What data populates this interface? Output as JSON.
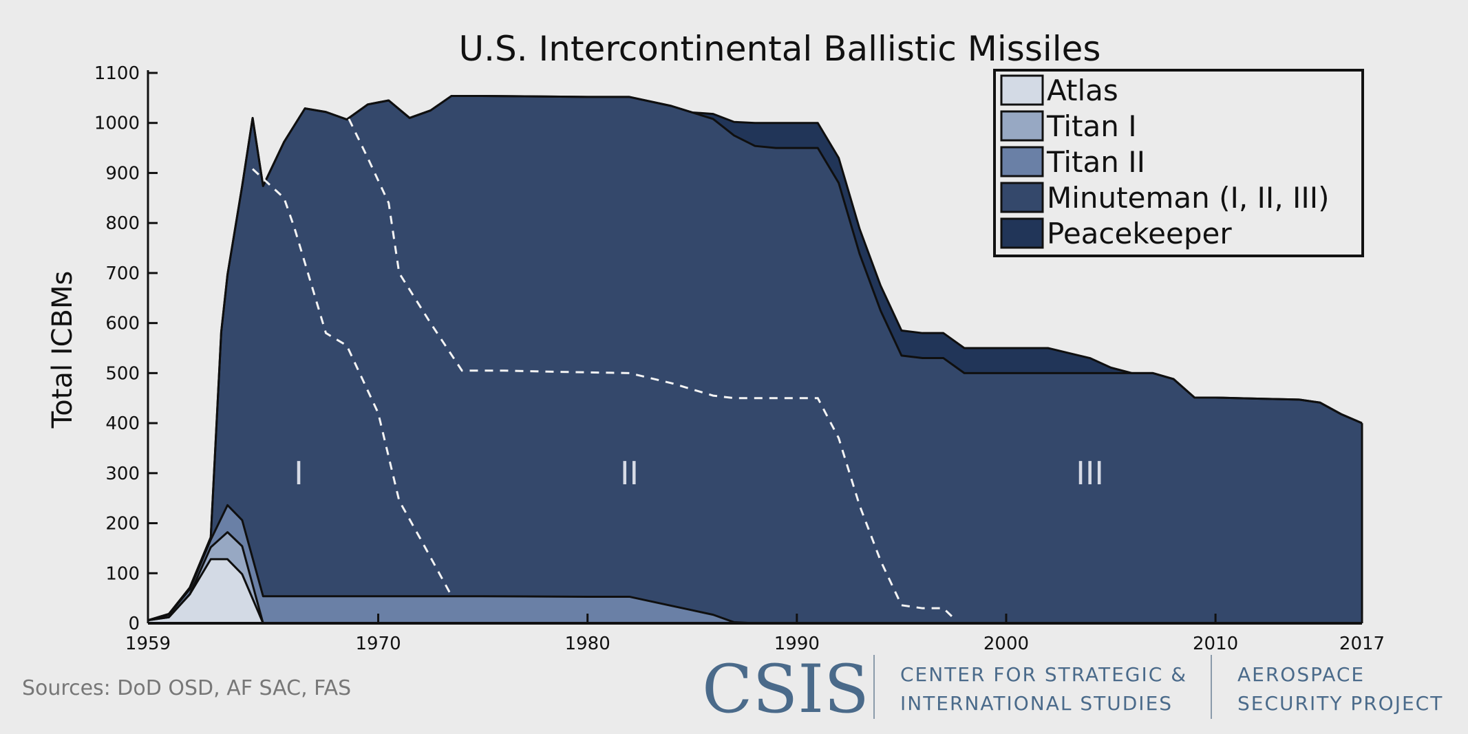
{
  "chart_data": {
    "type": "area",
    "title": "U.S. Intercontinental Ballistic Missiles",
    "ylabel": "Total ICBMs",
    "xlabel": "",
    "xlim": [
      1959,
      2017
    ],
    "ylim": [
      0,
      1100
    ],
    "xticks": [
      1959,
      1970,
      1980,
      1990,
      2000,
      2010,
      2017
    ],
    "yticks": [
      0,
      100,
      200,
      300,
      400,
      500,
      600,
      700,
      800,
      900,
      1000,
      1100
    ],
    "grid": false,
    "legend_position": "top-right",
    "stacked": true,
    "series": [
      {
        "name": "Atlas",
        "color": "#d3dae5",
        "points": [
          [
            1959,
            6
          ],
          [
            1960,
            12
          ],
          [
            1961,
            58
          ],
          [
            1962,
            128
          ],
          [
            1962.8,
            128
          ],
          [
            1963.5,
            98
          ],
          [
            1964.5,
            0
          ],
          [
            2017,
            0
          ]
        ]
      },
      {
        "name": "Titan I",
        "color": "#97a8c3",
        "points": [
          [
            1959,
            0
          ],
          [
            1960,
            0
          ],
          [
            1961,
            0
          ],
          [
            1962,
            24
          ],
          [
            1962.8,
            54
          ],
          [
            1963.5,
            56
          ],
          [
            1964.5,
            0
          ],
          [
            2017,
            0
          ]
        ]
      },
      {
        "name": "Titan II",
        "color": "#6a80a6",
        "points": [
          [
            1959,
            0
          ],
          [
            1962,
            15
          ],
          [
            1962.8,
            54
          ],
          [
            1963.5,
            52
          ],
          [
            1964.5,
            54
          ],
          [
            1966,
            54
          ],
          [
            1970,
            54
          ],
          [
            1975,
            54
          ],
          [
            1980,
            53
          ],
          [
            1982,
            53
          ],
          [
            1984,
            35
          ],
          [
            1986,
            17
          ],
          [
            1987,
            2
          ],
          [
            1988,
            0
          ],
          [
            2017,
            0
          ]
        ]
      },
      {
        "name": "Minuteman (I, II, III)",
        "color": "#34486b",
        "points": [
          [
            1959,
            0
          ],
          [
            1962,
            5
          ],
          [
            1962.5,
            372
          ],
          [
            1963.5,
            668
          ],
          [
            1964,
            880
          ],
          [
            1964.5,
            820
          ],
          [
            1965.5,
            908
          ],
          [
            1966.5,
            975
          ],
          [
            1967.5,
            968
          ],
          [
            1968.5,
            953
          ],
          [
            1969.5,
            983
          ],
          [
            1970.5,
            991
          ],
          [
            1971.5,
            956
          ],
          [
            1972.5,
            971
          ],
          [
            1973.5,
            1000
          ],
          [
            1975,
            1000
          ],
          [
            1980,
            999
          ],
          [
            1982,
            999
          ],
          [
            1984,
            999
          ],
          [
            1985,
            995
          ],
          [
            1986,
            991
          ],
          [
            1987,
            973
          ],
          [
            1988,
            954
          ],
          [
            1989,
            950
          ],
          [
            1990,
            950
          ],
          [
            1991,
            950
          ],
          [
            1992,
            880
          ],
          [
            1993,
            738
          ],
          [
            1994,
            625
          ],
          [
            1995,
            535
          ],
          [
            1996,
            530
          ],
          [
            1997,
            530
          ],
          [
            1998,
            500
          ],
          [
            2000,
            500
          ],
          [
            2005,
            500
          ],
          [
            2006,
            500
          ],
          [
            2007,
            500
          ],
          [
            2008,
            488
          ],
          [
            2009,
            451
          ],
          [
            2010,
            451
          ],
          [
            2012,
            449
          ],
          [
            2014,
            447
          ],
          [
            2015,
            441
          ],
          [
            2016,
            418
          ],
          [
            2017,
            400
          ]
        ]
      },
      {
        "name": "Peacekeeper",
        "color": "#213558",
        "points": [
          [
            1959,
            0
          ],
          [
            1985,
            0
          ],
          [
            1986,
            10
          ],
          [
            1987,
            27
          ],
          [
            1988,
            46
          ],
          [
            1989,
            50
          ],
          [
            1991,
            50
          ],
          [
            1992,
            50
          ],
          [
            1993,
            50
          ],
          [
            1994,
            50
          ],
          [
            1995,
            50
          ],
          [
            1996,
            50
          ],
          [
            1997,
            50
          ],
          [
            1998,
            50
          ],
          [
            2000,
            50
          ],
          [
            2002,
            50
          ],
          [
            2003,
            40
          ],
          [
            2004,
            30
          ],
          [
            2005,
            11
          ],
          [
            2006,
            0
          ],
          [
            2017,
            0
          ]
        ]
      }
    ],
    "region_labels": [
      {
        "text": "I",
        "x": 1966.2,
        "y": 300
      },
      {
        "text": "II",
        "x": 1982,
        "y": 300
      },
      {
        "text": "III",
        "x": 2004,
        "y": 300
      }
    ],
    "generation_boundaries": [
      [
        [
          1964,
          908
        ],
        [
          1965.5,
          850
        ],
        [
          1966,
          790
        ],
        [
          1967.5,
          580
        ],
        [
          1968.5,
          555
        ],
        [
          1970,
          420
        ],
        [
          1971,
          245
        ],
        [
          1972,
          170
        ],
        [
          1973.5,
          55
        ]
      ],
      [
        [
          1968.6,
          1008
        ],
        [
          1969.5,
          930
        ],
        [
          1970.5,
          840
        ],
        [
          1971,
          700
        ],
        [
          1972.5,
          600
        ],
        [
          1974,
          505
        ],
        [
          1976,
          505
        ],
        [
          1978,
          503
        ],
        [
          1982,
          500
        ],
        [
          1984,
          480
        ],
        [
          1986,
          455
        ],
        [
          1987,
          450
        ],
        [
          1990,
          450
        ],
        [
          1991,
          450
        ],
        [
          1992,
          370
        ],
        [
          1993,
          235
        ],
        [
          1994,
          125
        ],
        [
          1995,
          36
        ],
        [
          1996,
          30
        ],
        [
          1997,
          30
        ],
        [
          1997.5,
          10
        ]
      ]
    ]
  },
  "source_note": "Sources: DoD OSD, AF SAC, FAS",
  "logo": {
    "wordmark": "CSIS",
    "line1": "CENTER FOR STRATEGIC &",
    "line2": "INTERNATIONAL STUDIES",
    "project_line1": "AEROSPACE",
    "project_line2": "SECURITY PROJECT"
  }
}
